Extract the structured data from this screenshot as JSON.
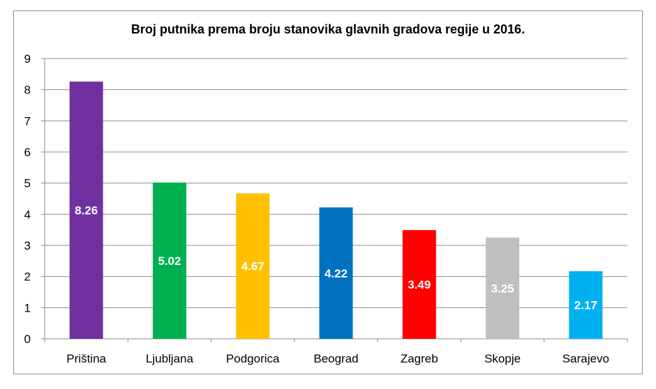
{
  "chart_data": {
    "type": "bar",
    "title": "Broj putnika prema broju stanovika glavnih gradova regije u 2016.",
    "xlabel": "",
    "ylabel": "",
    "categories": [
      "Priština",
      "Ljubljana",
      "Podgorica",
      "Beograd",
      "Zagreb",
      "Skopje",
      "Sarajevo"
    ],
    "values": [
      8.26,
      5.02,
      4.67,
      4.22,
      3.49,
      3.25,
      2.17
    ],
    "data_labels": [
      "8.26",
      "5.02",
      "4.67",
      "4.22",
      "3.49",
      "3.25",
      "2.17"
    ],
    "colors": [
      "#7030a0",
      "#00b050",
      "#ffc000",
      "#0070c0",
      "#ff0000",
      "#bfbfbf",
      "#00b0f0"
    ],
    "ylim": [
      0,
      9
    ],
    "yticks": [
      "0",
      "1",
      "2",
      "3",
      "4",
      "5",
      "6",
      "7",
      "8",
      "9"
    ],
    "grid": true,
    "legend": "none"
  }
}
